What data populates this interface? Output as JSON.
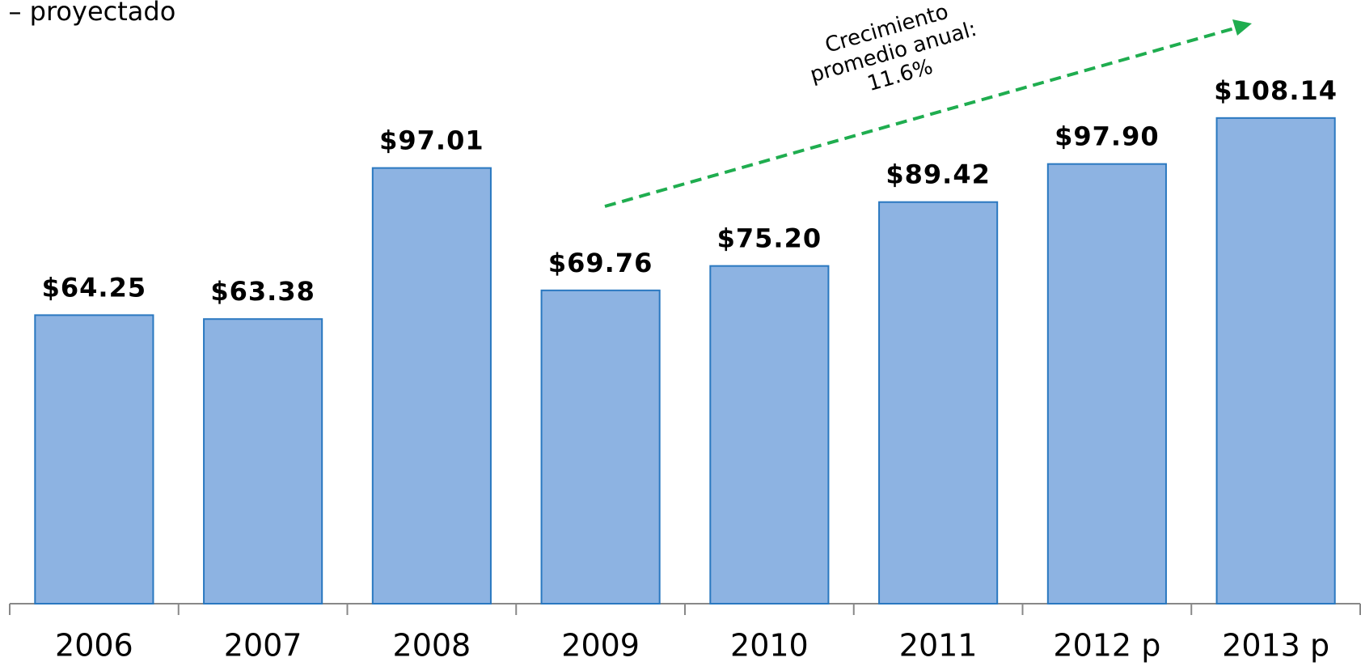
{
  "chart_data": {
    "type": "bar",
    "subtitle": "p – proyectado",
    "annotation": [
      "Crecimiento",
      "promedio anual:",
      "11.6%"
    ],
    "categories": [
      "2006",
      "2007",
      "2008",
      "2009",
      "2010",
      "2011",
      "2012 p",
      "2013 p"
    ],
    "values": [
      64.25,
      63.38,
      97.01,
      69.76,
      75.2,
      89.42,
      97.9,
      108.14
    ],
    "value_labels": [
      "$64.25",
      "$63.38",
      "$97.01",
      "$69.76",
      "$75.20",
      "$89.42",
      "$97.90",
      "$108.14"
    ],
    "color": "#8db3e2",
    "ylim": [
      0,
      120
    ]
  }
}
